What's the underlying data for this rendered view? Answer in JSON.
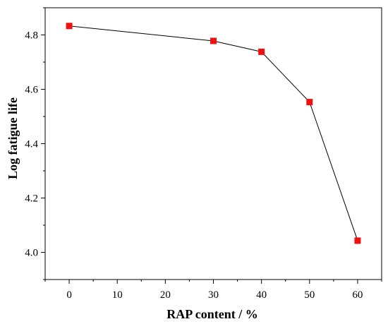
{
  "chart_data": {
    "type": "line",
    "title": "",
    "xlabel": "RAP content / %",
    "ylabel": "Log fatigue life",
    "xlim": [
      -5,
      65
    ],
    "ylim": [
      3.9,
      4.9
    ],
    "x_ticks": [
      "0",
      "10",
      "20",
      "30",
      "40",
      "50",
      "60"
    ],
    "y_ticks": [
      "4.0",
      "4.2",
      "4.4",
      "4.6",
      "4.8"
    ],
    "grid": false,
    "series": [
      {
        "x": [
          0,
          30,
          40,
          50,
          60
        ],
        "values": [
          4.833,
          4.778,
          4.738,
          4.553,
          4.043
        ],
        "line_color": "#000000",
        "marker": "square",
        "marker_color": "#ee1111"
      }
    ]
  }
}
